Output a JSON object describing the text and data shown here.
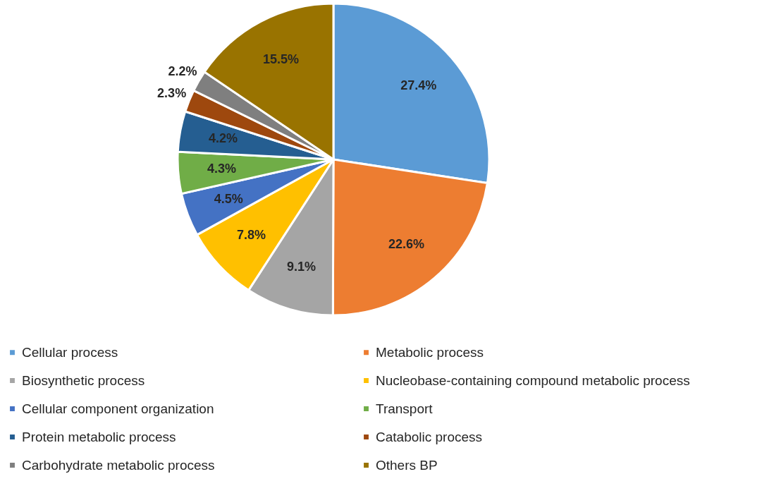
{
  "chart_data": {
    "type": "pie",
    "categories": [
      "Cellular process",
      "Metabolic process",
      "Biosynthetic process",
      "Nucleobase-containing compound metabolic process",
      "Cellular component organization",
      "Transport",
      "Protein metabolic process",
      "Catabolic process",
      "Carbohydrate metabolic process",
      "Others BP"
    ],
    "values": [
      27.4,
      22.6,
      9.1,
      7.8,
      4.5,
      4.3,
      4.2,
      2.3,
      2.2,
      15.5
    ],
    "value_labels": [
      "27.4%",
      "22.6%",
      "9.1%",
      "7.8%",
      "4.5%",
      "4.3%",
      "4.2%",
      "2.3%",
      "2.2%",
      "15.5%"
    ],
    "colors": [
      "#5b9bd5",
      "#ed7d31",
      "#a5a5a5",
      "#ffc000",
      "#4472c4",
      "#70ad47",
      "#255e91",
      "#9e480e",
      "#7f7f7f",
      "#997300"
    ],
    "legend": "bottom"
  }
}
